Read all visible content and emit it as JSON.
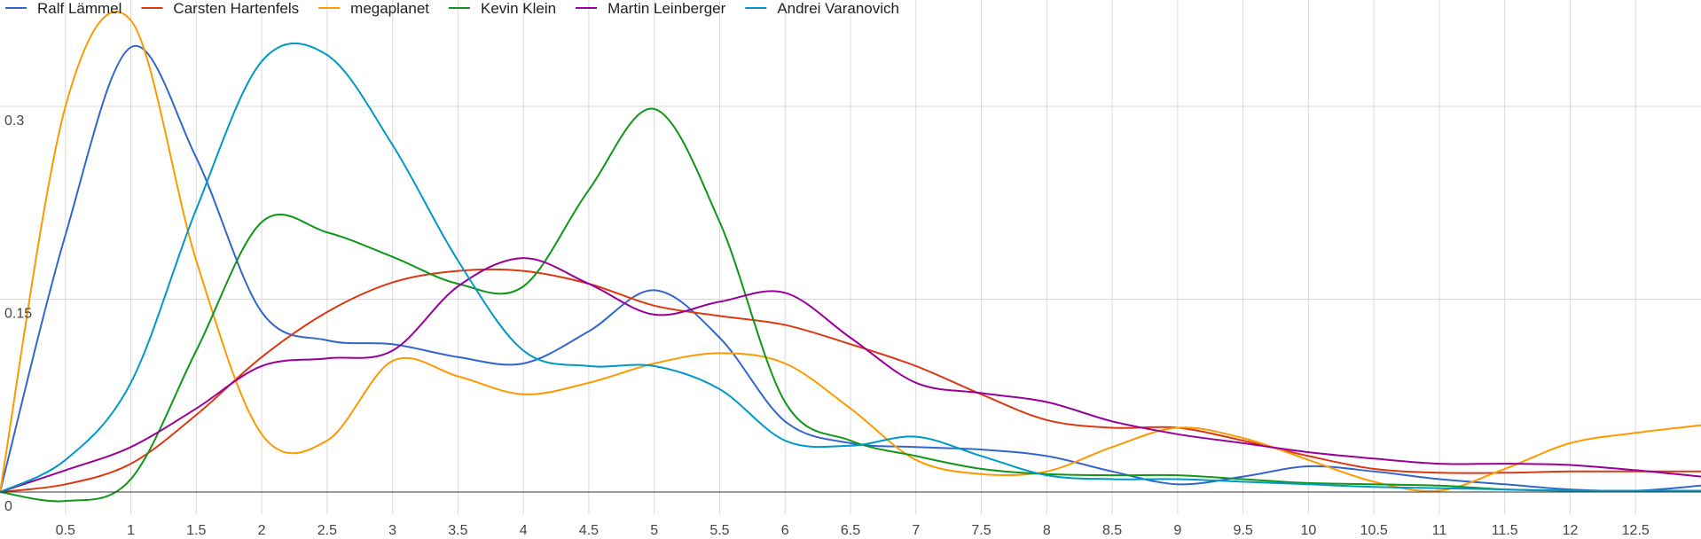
{
  "chart_data": {
    "type": "line",
    "title": "",
    "xlabel": "",
    "ylabel": "",
    "xlim": [
      0,
      13
    ],
    "ylim": [
      0,
      0.375
    ],
    "grid": true,
    "legend_position": "top-left",
    "x_ticks": [
      "0.5",
      "1",
      "1.5",
      "2",
      "2.5",
      "3",
      "3.5",
      "4",
      "4.5",
      "5",
      "5.5",
      "6",
      "6.5",
      "7",
      "7.5",
      "8",
      "8.5",
      "9",
      "9.5",
      "10",
      "10.5",
      "11",
      "11.5",
      "12",
      "12.5"
    ],
    "x_tick_values": [
      0.5,
      1,
      1.5,
      2,
      2.5,
      3,
      3.5,
      4,
      4.5,
      5,
      5.5,
      6,
      6.5,
      7,
      7.5,
      8,
      8.5,
      9,
      9.5,
      10,
      10.5,
      11,
      11.5,
      12,
      12.5
    ],
    "y_ticks": [
      "0",
      "0.15",
      "0.3"
    ],
    "y_tick_values": [
      0,
      0.15,
      0.3
    ],
    "x": [
      0,
      0.5,
      1,
      1.5,
      2,
      2.5,
      3,
      3.5,
      4,
      4.5,
      5,
      5.5,
      6,
      6.5,
      7,
      7.5,
      8,
      8.5,
      9,
      9.5,
      10,
      10.5,
      11,
      11.5,
      12,
      12.5,
      13
    ],
    "series": [
      {
        "name": "Ralf Lämmel",
        "color": "#3366cc",
        "values": [
          0,
          0.2,
          0.346,
          0.26,
          0.14,
          0.118,
          0.115,
          0.105,
          0.1,
          0.125,
          0.157,
          0.12,
          0.055,
          0.038,
          0.035,
          0.033,
          0.028,
          0.016,
          0.006,
          0.012,
          0.02,
          0.016,
          0.01,
          0.006,
          0.002,
          0.001,
          0.005
        ]
      },
      {
        "name": "Carsten Hartenfels",
        "color": "#dc3912",
        "values": [
          0,
          0.006,
          0.022,
          0.06,
          0.105,
          0.14,
          0.163,
          0.172,
          0.172,
          0.162,
          0.145,
          0.137,
          0.13,
          0.115,
          0.098,
          0.076,
          0.056,
          0.05,
          0.05,
          0.04,
          0.028,
          0.018,
          0.015,
          0.015,
          0.016,
          0.016,
          0.016
        ]
      },
      {
        "name": "megaplanet",
        "color": "#ff9900",
        "values": [
          0,
          0.3,
          0.367,
          0.18,
          0.045,
          0.04,
          0.102,
          0.09,
          0.076,
          0.085,
          0.1,
          0.108,
          0.1,
          0.065,
          0.025,
          0.014,
          0.016,
          0.035,
          0.05,
          0.042,
          0.025,
          0.008,
          0.001,
          0.018,
          0.038,
          0.046,
          0.052
        ]
      },
      {
        "name": "Kevin Klein",
        "color": "#109618",
        "values": [
          0,
          -0.007,
          0.01,
          0.11,
          0.21,
          0.202,
          0.183,
          0.162,
          0.16,
          0.235,
          0.298,
          0.21,
          0.07,
          0.04,
          0.028,
          0.018,
          0.014,
          0.013,
          0.013,
          0.01,
          0.007,
          0.006,
          0.005,
          0.002,
          0.001,
          0.001,
          0.001
        ]
      },
      {
        "name": "Martin Leinberger",
        "color": "#990099",
        "values": [
          0,
          0.017,
          0.035,
          0.065,
          0.098,
          0.104,
          0.11,
          0.16,
          0.182,
          0.162,
          0.138,
          0.148,
          0.155,
          0.12,
          0.085,
          0.077,
          0.07,
          0.055,
          0.045,
          0.038,
          0.031,
          0.026,
          0.022,
          0.022,
          0.021,
          0.017,
          0.012
        ]
      },
      {
        "name": "Andrei Varanovich",
        "color": "#0099c6",
        "values": [
          0,
          0.025,
          0.085,
          0.22,
          0.335,
          0.34,
          0.27,
          0.18,
          0.11,
          0.098,
          0.098,
          0.08,
          0.04,
          0.036,
          0.043,
          0.028,
          0.013,
          0.01,
          0.01,
          0.008,
          0.006,
          0.004,
          0.003,
          0.002,
          0.001,
          0.001,
          0.001
        ]
      }
    ]
  }
}
